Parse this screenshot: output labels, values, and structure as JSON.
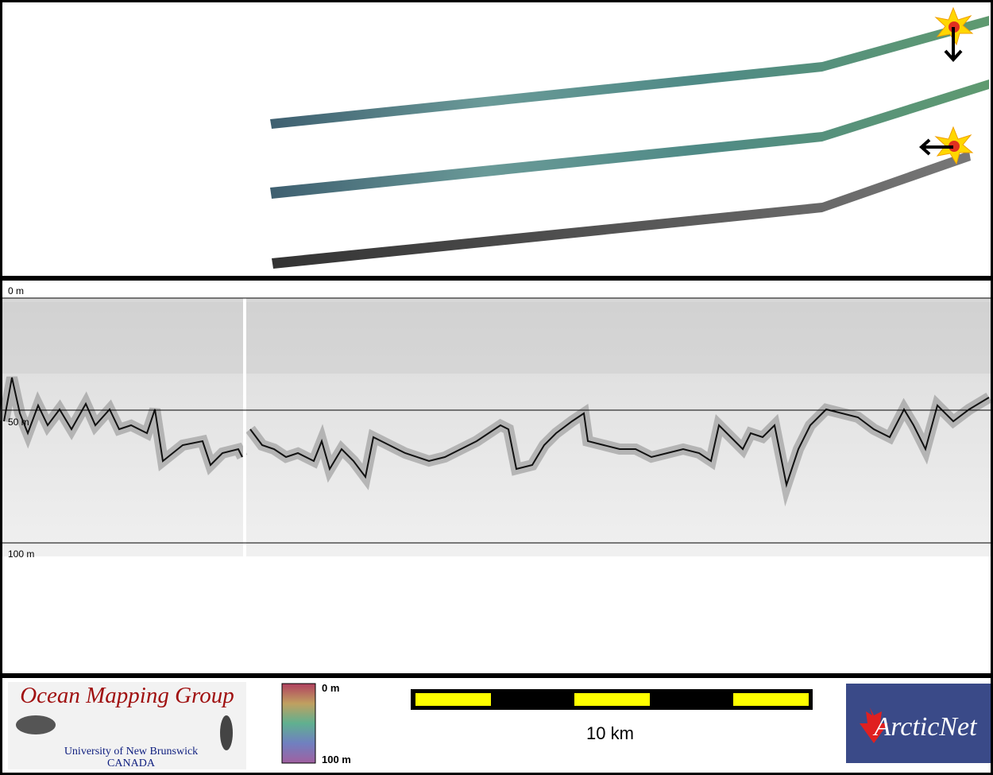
{
  "profile": {
    "depth_labels": [
      "0 m",
      "50 m",
      "100 m"
    ]
  },
  "logo": {
    "title": "Ocean Mapping Group",
    "line1": "University of New Brunswick",
    "line2": "CANADA"
  },
  "colorbar": {
    "top": "0 m",
    "bottom": "100 m"
  },
  "scale_bar": {
    "label": "10 km"
  },
  "partner_logo": {
    "text": "ArcticNet"
  }
}
